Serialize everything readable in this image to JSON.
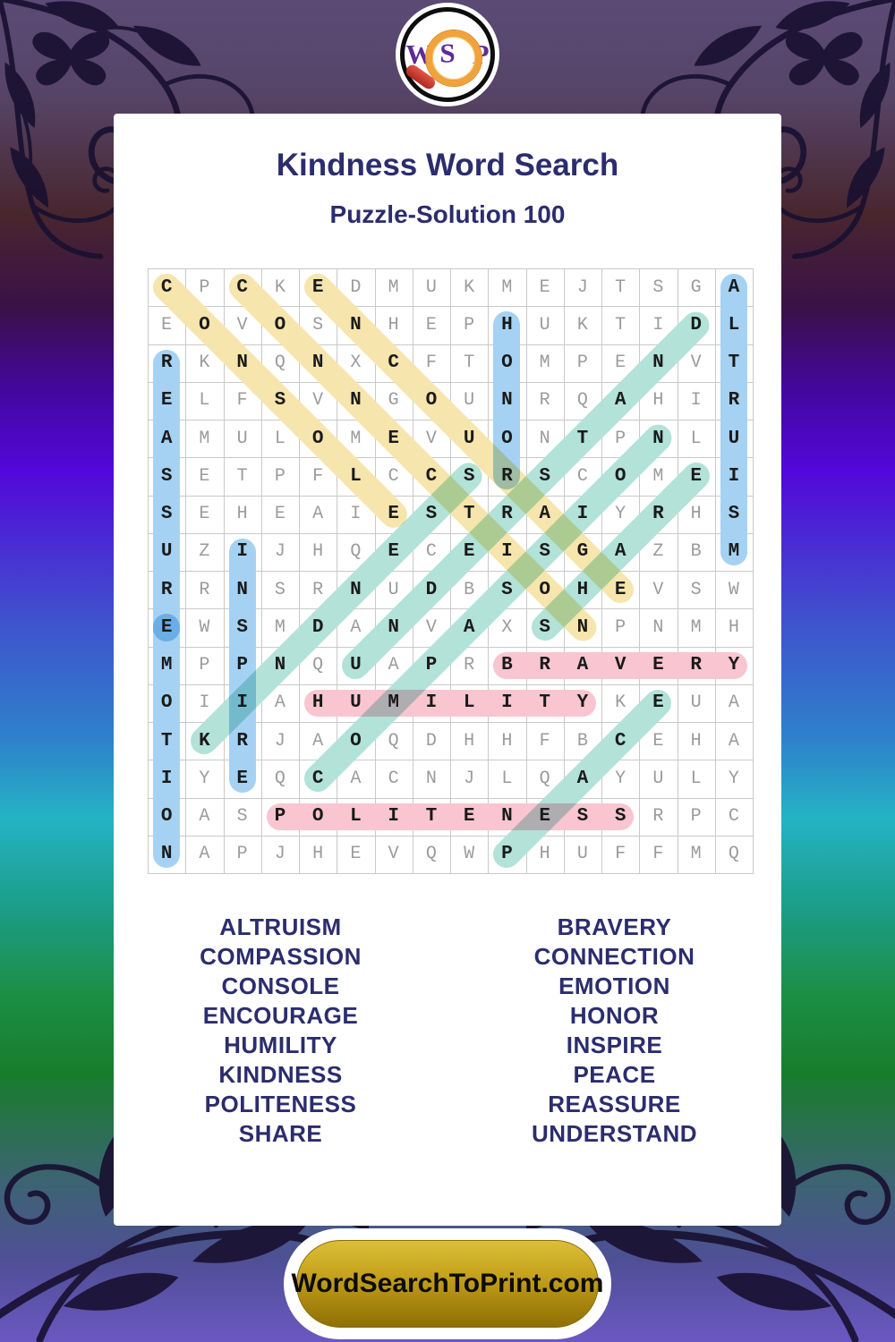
{
  "logo": {
    "left_letter": "W",
    "center_letter": "S",
    "right_letter": "P"
  },
  "header": {
    "title": "Kindness Word Search",
    "subtitle": "Puzzle-Solution 100"
  },
  "palette": {
    "yellow": "#f6e5ad",
    "blue": "#a5d2f2",
    "teal": "#b2e2d8",
    "pink": "#f9c5d0"
  },
  "grid": {
    "size": 16,
    "rows": [
      "CPCKEDMUKMEJTSGA",
      "EOVOSNHEPHUKTIDL",
      "RKNQNXCFTOMPENVT",
      "ELFSVNGOUNRQAHIR",
      "AMULOMEVUONTPNLU",
      "SETPFLCCSRSCOMEI",
      "SEHEAIESTRAIYRHS",
      "UZIJHQECEISGAZBM",
      "RRNSRNUDBSOHEVSW",
      "EWSMDANVAXSNPNMH",
      "MPPNQUAPRBRAVERY",
      "OIIAHUMILITYKEUA",
      "TKRJAOQDHHFBCEHA",
      "IYEQCACNJLQAYULY",
      "OASPOLITENESSRPC",
      "NAPJHEVQWPHUFFMQ"
    ],
    "words": [
      {
        "text": "CONSOLE",
        "start": [
          0,
          0
        ],
        "end": [
          6,
          6
        ],
        "color": "yellow"
      },
      {
        "text": "CONNECTION",
        "start": [
          0,
          2
        ],
        "end": [
          9,
          11
        ],
        "color": "yellow"
      },
      {
        "text": "ENCOURAGE",
        "start": [
          0,
          4
        ],
        "end": [
          8,
          12
        ],
        "color": "yellow"
      },
      {
        "text": "ALTRUISM",
        "start": [
          0,
          15
        ],
        "end": [
          7,
          15
        ],
        "color": "blue"
      },
      {
        "text": "HONOR",
        "start": [
          1,
          9
        ],
        "end": [
          5,
          9
        ],
        "color": "blue"
      },
      {
        "text": "REASSURE",
        "start": [
          2,
          0
        ],
        "end": [
          9,
          0
        ],
        "color": "blue"
      },
      {
        "text": "EMOTION",
        "start": [
          9,
          0
        ],
        "end": [
          15,
          0
        ],
        "color": "blue"
      },
      {
        "text": "INSPIRE",
        "start": [
          7,
          2
        ],
        "end": [
          13,
          2
        ],
        "color": "blue"
      },
      {
        "text": "KINDNESS",
        "start": [
          12,
          1
        ],
        "end": [
          5,
          8
        ],
        "color": "teal"
      },
      {
        "text": "COMPASSION",
        "start": [
          13,
          4
        ],
        "end": [
          4,
          13
        ],
        "color": "teal"
      },
      {
        "text": "UNDERSTAND",
        "start": [
          10,
          5
        ],
        "end": [
          1,
          14
        ],
        "color": "teal"
      },
      {
        "text": "SHARE",
        "start": [
          9,
          10
        ],
        "end": [
          5,
          14
        ],
        "color": "teal"
      },
      {
        "text": "PEACE",
        "start": [
          15,
          9
        ],
        "end": [
          11,
          13
        ],
        "color": "teal"
      },
      {
        "text": "BRAVERY",
        "start": [
          10,
          9
        ],
        "end": [
          10,
          15
        ],
        "color": "pink"
      },
      {
        "text": "HUMILITY",
        "start": [
          11,
          4
        ],
        "end": [
          11,
          11
        ],
        "color": "pink"
      },
      {
        "text": "POLITENESS",
        "start": [
          14,
          3
        ],
        "end": [
          14,
          12
        ],
        "color": "pink"
      }
    ]
  },
  "word_list": {
    "left": [
      "ALTRUISM",
      "COMPASSION",
      "CONSOLE",
      "ENCOURAGE",
      "HUMILITY",
      "KINDNESS",
      "POLITENESS",
      "SHARE"
    ],
    "right": [
      "BRAVERY",
      "CONNECTION",
      "EMOTION",
      "HONOR",
      "INSPIRE",
      "PEACE",
      "REASSURE",
      "UNDERSTAND"
    ]
  },
  "footer": {
    "site": "WordSearchToPrint.com"
  }
}
